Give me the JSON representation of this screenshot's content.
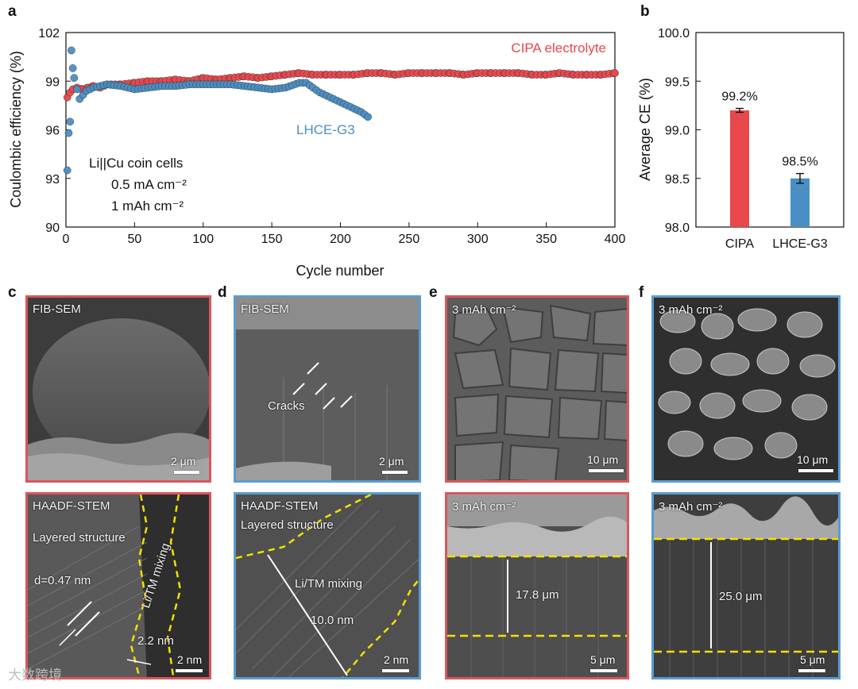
{
  "chart_data": [
    {
      "panel": "a",
      "type": "scatter",
      "xlabel": "Cycle number",
      "ylabel": "Coulombic efficiency (%)",
      "xlim": [
        0,
        400
      ],
      "ylim": [
        90,
        102
      ],
      "xticks": [
        0,
        50,
        100,
        150,
        200,
        250,
        300,
        350,
        400
      ],
      "yticks": [
        90,
        93,
        96,
        99,
        102
      ],
      "annotations": [
        "Li||Cu coin cells",
        "0.5 mA cm⁻²",
        "1 mAh cm⁻²"
      ],
      "series": [
        {
          "name": "CIPA electrolyte",
          "color": "#e8474c",
          "x": [
            1,
            3,
            5,
            8,
            12,
            16,
            20,
            25,
            30,
            40,
            50,
            60,
            70,
            80,
            90,
            100,
            110,
            120,
            130,
            140,
            150,
            160,
            170,
            180,
            190,
            200,
            210,
            220,
            230,
            240,
            250,
            260,
            270,
            280,
            290,
            300,
            310,
            320,
            330,
            340,
            350,
            360,
            370,
            380,
            390,
            400
          ],
          "y": [
            98.0,
            98.3,
            98.5,
            98.6,
            98.5,
            98.6,
            98.7,
            98.6,
            98.8,
            98.8,
            98.9,
            99.0,
            99.0,
            99.1,
            99.0,
            99.2,
            99.1,
            99.2,
            99.3,
            99.2,
            99.3,
            99.4,
            99.5,
            99.4,
            99.4,
            99.4,
            99.4,
            99.5,
            99.5,
            99.4,
            99.5,
            99.5,
            99.5,
            99.5,
            99.4,
            99.5,
            99.5,
            99.5,
            99.5,
            99.4,
            99.4,
            99.5,
            99.4,
            99.4,
            99.4,
            99.5
          ]
        },
        {
          "name": "LHCE-G3",
          "color": "#4a8fc4",
          "x": [
            1,
            2,
            3,
            4,
            5,
            6,
            8,
            10,
            15,
            20,
            25,
            30,
            40,
            50,
            60,
            70,
            80,
            90,
            100,
            110,
            120,
            130,
            140,
            150,
            160,
            170,
            175,
            180,
            185,
            190,
            195,
            200,
            205,
            210,
            215,
            220
          ],
          "y": [
            93.5,
            95.8,
            96.5,
            100.9,
            99.8,
            99.2,
            98.5,
            97.9,
            98.4,
            98.6,
            98.7,
            98.8,
            98.7,
            98.5,
            98.6,
            98.7,
            98.7,
            98.8,
            98.8,
            98.8,
            98.8,
            98.7,
            98.6,
            98.5,
            98.6,
            98.9,
            98.9,
            98.6,
            98.3,
            98.1,
            97.9,
            97.7,
            97.5,
            97.3,
            97.1,
            96.8
          ]
        }
      ]
    },
    {
      "panel": "b",
      "type": "bar",
      "ylabel": "Average CE (%)",
      "ylim": [
        98.0,
        100.0
      ],
      "yticks": [
        "98.0",
        "98.5",
        "99.0",
        "99.5",
        "100.0"
      ],
      "categories": [
        "CIPA",
        "LHCE-G3"
      ],
      "values": [
        99.2,
        98.5
      ],
      "errors": [
        0.02,
        0.05
      ],
      "data_labels": [
        "99.2%",
        "98.5%"
      ],
      "colors": [
        "#e8474c",
        "#4a8fc4"
      ]
    }
  ],
  "panels": {
    "a": "a",
    "b": "b",
    "c": "c",
    "d": "d",
    "e": "e",
    "f": "f"
  },
  "images": {
    "c_top": {
      "label": "FIB-SEM",
      "scale": "2 μm"
    },
    "c_bottom": {
      "label": "HAADF-STEM",
      "sublabel": "Layered structure",
      "d_spacing": "d=0.47 nm",
      "mixing": "Li/TM mixing",
      "thickness": "2.2 nm",
      "scale": "2 nm"
    },
    "d_top": {
      "label": "FIB-SEM",
      "cracks": "Cracks",
      "scale": "2 μm"
    },
    "d_bottom": {
      "label": "HAADF-STEM",
      "sublabel": "Layered structure",
      "mixing": "Li/TM mixing",
      "thickness": "10.0 nm",
      "scale": "2 nm"
    },
    "e_top": {
      "label": "3 mAh cm⁻²",
      "scale": "10 μm"
    },
    "e_bottom": {
      "label": "3 mAh cm⁻²",
      "thickness": "17.8 μm",
      "scale": "5 μm"
    },
    "f_top": {
      "label": "3 mAh cm⁻²",
      "scale": "10 μm"
    },
    "f_bottom": {
      "label": "3 mAh cm⁻²",
      "thickness": "25.0 μm",
      "scale": "5 μm"
    }
  },
  "watermark": "大数跨境"
}
